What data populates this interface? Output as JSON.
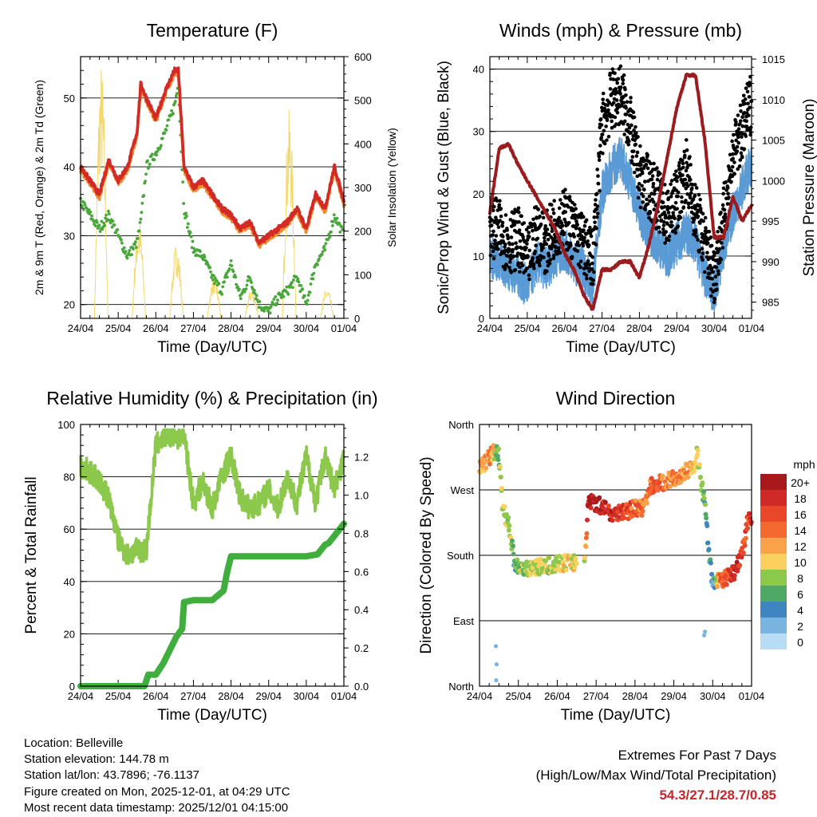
{
  "chart_data": [
    {
      "type": "line",
      "title": "Temperature (F)",
      "xlabel": "Time (Day/UTC)",
      "ylabel": "2m & 9m T (Red, Orange) & 2m Td (Green)",
      "ylabel_right": "Solar Insolation (Yellow)",
      "x_ticks": [
        "24/04",
        "25/04",
        "26/04",
        "27/04",
        "28/04",
        "29/04",
        "30/04",
        "01/04"
      ],
      "ylim": [
        18,
        56
      ],
      "y_ticks": [
        20,
        30,
        40,
        50
      ],
      "ylim_right": [
        0,
        600
      ],
      "y_ticks_right": [
        0,
        100,
        200,
        300,
        400,
        500,
        600
      ],
      "x_day": [
        0,
        0.25,
        0.5,
        0.75,
        1,
        1.25,
        1.5,
        1.6,
        1.75,
        2,
        2.25,
        2.5,
        2.6,
        2.75,
        3,
        3.25,
        3.5,
        3.75,
        4,
        4.25,
        4.5,
        4.75,
        5,
        5.25,
        5.5,
        5.75,
        6,
        6.25,
        6.5,
        6.75,
        7
      ],
      "series": [
        {
          "name": "2m T",
          "color": "#d42a26",
          "values": [
            40,
            38,
            36,
            41,
            38,
            40,
            45,
            52,
            50,
            47,
            51,
            54,
            54,
            40,
            37,
            38,
            36,
            34,
            33,
            31,
            32,
            29,
            30,
            31,
            32,
            34,
            31,
            36,
            34,
            40,
            35
          ]
        },
        {
          "name": "9m T",
          "color": "#ef8a2e",
          "values": [
            39.6,
            37.6,
            35.6,
            40.6,
            37.6,
            39.6,
            44.6,
            51.6,
            49.6,
            46.6,
            50.6,
            53.6,
            53.6,
            39.6,
            36.6,
            37.6,
            35.6,
            33.6,
            32.6,
            30.6,
            31.6,
            28.6,
            29.6,
            30.6,
            31.6,
            33.6,
            30.6,
            35.6,
            33.6,
            39.6,
            34.6
          ]
        },
        {
          "name": "2m Td",
          "color": "#49a63b",
          "values": [
            35,
            33,
            31,
            33,
            30,
            27,
            29,
            32,
            40,
            42,
            45,
            49,
            52,
            34,
            28,
            27,
            24,
            22,
            26,
            21,
            24,
            20,
            19,
            21,
            22,
            24,
            20,
            26,
            28,
            33,
            30
          ]
        },
        {
          "name": "Solar Insolation",
          "color": "#f4d86a",
          "axis": "right",
          "peaks": [
            {
              "day": 0.55,
              "value": 590
            },
            {
              "day": 1.55,
              "value": 230
            },
            {
              "day": 2.55,
              "value": 175
            },
            {
              "day": 3.55,
              "value": 100
            },
            {
              "day": 4.55,
              "value": 70
            },
            {
              "day": 5.55,
              "value": 480
            },
            {
              "day": 6.55,
              "value": 70
            }
          ]
        }
      ]
    },
    {
      "type": "scatter",
      "title": "Winds (mph) & Pressure (mb)",
      "xlabel": "Time (Day/UTC)",
      "ylabel": "Sonic/Prop Wind & Gust (Blue, Black)",
      "ylabel_right": "Station Pressure (Maroon)",
      "x_ticks": [
        "24/04",
        "25/04",
        "26/04",
        "27/04",
        "28/04",
        "29/04",
        "30/04",
        "01/04"
      ],
      "ylim": [
        0,
        42
      ],
      "y_ticks": [
        0,
        10,
        20,
        30,
        40
      ],
      "ylim_right": [
        983,
        1015.3
      ],
      "y_ticks_right": [
        985,
        990,
        995,
        1000,
        1005,
        1010,
        1015
      ],
      "x_day": [
        0,
        0.25,
        0.5,
        0.75,
        1,
        1.25,
        1.5,
        1.75,
        2,
        2.25,
        2.5,
        2.75,
        3,
        3.25,
        3.5,
        3.75,
        4,
        4.25,
        4.5,
        4.75,
        5,
        5.25,
        5.5,
        5.75,
        6,
        6.25,
        6.5,
        6.75,
        7
      ],
      "series": [
        {
          "name": "Sonic/Prop Wind",
          "color": "#5b9bd5",
          "values": [
            10,
            9,
            8,
            7,
            5,
            9,
            8,
            10,
            11,
            9,
            8,
            5,
            20,
            24,
            26,
            22,
            17,
            14,
            12,
            10,
            12,
            14,
            12,
            7,
            4,
            11,
            17,
            21,
            25
          ]
        },
        {
          "name": "Gust",
          "color": "#000000",
          "values": [
            15,
            14,
            12,
            13,
            9,
            14,
            12,
            15,
            16,
            14,
            12,
            9,
            31,
            35,
            36,
            31,
            23,
            21,
            19,
            16,
            19,
            24,
            17,
            12,
            7,
            16,
            26,
            30,
            35
          ]
        },
        {
          "name": "Station Pressure",
          "color": "#9b1c1f",
          "axis": "right",
          "values": [
            996,
            1004,
            1004.5,
            1002,
            1000,
            998,
            996,
            994,
            991,
            989,
            986,
            984,
            989,
            989,
            990,
            990,
            988,
            992,
            997,
            1003,
            1009,
            1013,
            1013,
            1005,
            993,
            993,
            998,
            995,
            997
          ]
        }
      ]
    },
    {
      "type": "line",
      "title": "Relative Humidity (%) & Precipitation (in)",
      "xlabel": "Time (Day/UTC)",
      "ylabel": "Percent & Total Rainfall",
      "x_ticks": [
        "24/04",
        "25/04",
        "26/04",
        "27/04",
        "28/04",
        "29/04",
        "30/04",
        "01/04"
      ],
      "ylim": [
        0,
        100
      ],
      "y_ticks": [
        0,
        20,
        40,
        60,
        80,
        100
      ],
      "ylim_right": [
        0,
        1.37
      ],
      "y_ticks_right": [
        0.0,
        0.2,
        0.4,
        0.6,
        0.8,
        1.0,
        1.2
      ],
      "series": [
        {
          "name": "Relative Humidity",
          "color": "#8cc84b",
          "x_day": [
            0,
            0.25,
            0.5,
            0.75,
            1,
            1.25,
            1.5,
            1.75,
            2,
            2.25,
            2.5,
            2.75,
            3,
            3.25,
            3.5,
            3.75,
            4,
            4.25,
            4.5,
            4.75,
            5,
            5.25,
            5.5,
            5.75,
            6,
            6.25,
            6.5,
            6.75,
            7
          ],
          "values": [
            84,
            82,
            78,
            72,
            56,
            50,
            52,
            52,
            92,
            96,
            95,
            96,
            70,
            78,
            68,
            80,
            88,
            72,
            68,
            70,
            75,
            68,
            80,
            70,
            88,
            70,
            88,
            75,
            88
          ]
        },
        {
          "name": "Total Precipitation",
          "color": "#3fae3c",
          "axis": "right",
          "x_day": [
            0,
            0.5,
            1,
            1.5,
            1.7,
            1.8,
            2.0,
            2.2,
            2.4,
            2.55,
            2.7,
            2.75,
            3.0,
            3.5,
            3.8,
            3.9,
            4.0,
            4.5,
            5.0,
            5.5,
            6.0,
            6.3,
            6.5,
            6.6,
            6.8,
            7.0
          ],
          "values": [
            0,
            0,
            0,
            0,
            0,
            0.06,
            0.06,
            0.12,
            0.2,
            0.26,
            0.3,
            0.44,
            0.45,
            0.45,
            0.5,
            0.6,
            0.68,
            0.68,
            0.68,
            0.68,
            0.68,
            0.69,
            0.74,
            0.75,
            0.8,
            0.85
          ]
        }
      ]
    },
    {
      "type": "scatter",
      "title": "Wind Direction",
      "xlabel": "Time (Day/UTC)",
      "ylabel": "Direction (Colored By Speed)",
      "x_ticks": [
        "24/04",
        "25/04",
        "26/04",
        "27/04",
        "28/04",
        "29/04",
        "30/04",
        "01/04"
      ],
      "y_ticks": [
        "North",
        "East",
        "South",
        "West",
        "North"
      ],
      "ylim": [
        0,
        360
      ],
      "legend_title": "mph",
      "legend": [
        "20+",
        "18",
        "16",
        "14",
        "12",
        "10",
        "8",
        "6",
        "4",
        "2",
        "0"
      ],
      "legend_colors": [
        "#a8191c",
        "#cf2a26",
        "#e9472a",
        "#f4692f",
        "#faa24a",
        "#fbd05e",
        "#8cc84b",
        "#4fa865",
        "#3f86c0",
        "#79b4e0",
        "#b8dcf3"
      ],
      "x_day": [
        0,
        0.1,
        0.2,
        0.3,
        0.4,
        0.45,
        0.5,
        0.55,
        0.6,
        0.7,
        0.8,
        0.9,
        1.0,
        1.2,
        1.4,
        1.6,
        1.8,
        2.0,
        2.2,
        2.4,
        2.6,
        2.7,
        2.8,
        3.0,
        3.2,
        3.4,
        3.6,
        3.8,
        4.0,
        4.2,
        4.4,
        4.6,
        4.8,
        5.0,
        5.2,
        5.4,
        5.5,
        5.6,
        5.7,
        5.8,
        5.9,
        6.0,
        6.2,
        6.4,
        6.6,
        6.8,
        6.9,
        7.0
      ],
      "direction": [
        300,
        305,
        312,
        318,
        322,
        328,
        315,
        280,
        245,
        230,
        210,
        170,
        165,
        162,
        163,
        164,
        166,
        168,
        170,
        170,
        172,
        168,
        255,
        252,
        245,
        238,
        240,
        240,
        245,
        244,
        275,
        278,
        282,
        285,
        290,
        298,
        300,
        320,
        280,
        250,
        180,
        140,
        145,
        150,
        160,
        195,
        228,
        230
      ],
      "speed": [
        11,
        11,
        12,
        12,
        10,
        6,
        8,
        8,
        9,
        9,
        8,
        6,
        7,
        8,
        9,
        9,
        8,
        9,
        10,
        10,
        10,
        8,
        20,
        20,
        18,
        18,
        17,
        16,
        14,
        14,
        14,
        15,
        13,
        13,
        13,
        12,
        10,
        9,
        8,
        6,
        4,
        3,
        14,
        16,
        18,
        15,
        16,
        17
      ],
      "scattered_calm_points": [
        {
          "day": 0.42,
          "direction": 55
        },
        {
          "day": 0.44,
          "direction": 30
        },
        {
          "day": 0.43,
          "direction": 8
        },
        {
          "day": 5.8,
          "direction": 75
        },
        {
          "day": 5.78,
          "direction": 70
        }
      ]
    }
  ],
  "station_info": [
    "Location: Belleville",
    "Station elevation: 144.78 m",
    "Station lat/lon: 43.7896; -76.1137",
    "Figure created on Mon, 2025-12-01, at 04:29 UTC",
    "Most recent data timestamp: 2025/12/01 04:15:00"
  ],
  "extremes": {
    "title": "Extremes For Past 7 Days",
    "subtitle": "(High/Low/Max Wind/Total Precipitation)",
    "values": "54.3/27.1/28.7/0.85"
  }
}
